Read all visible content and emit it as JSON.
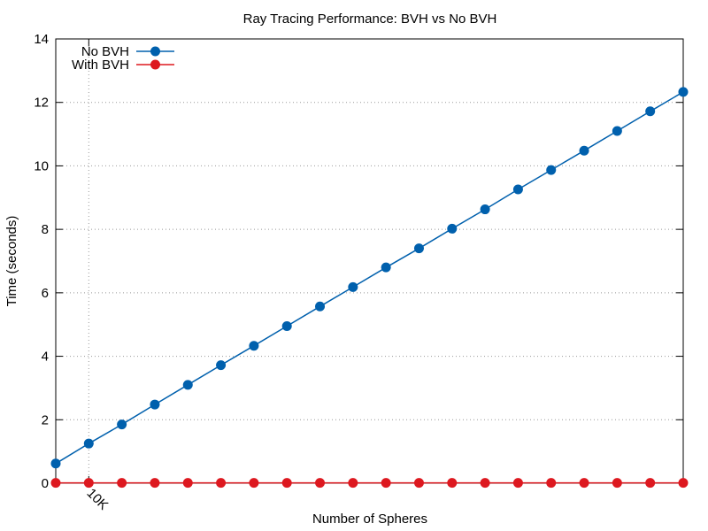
{
  "chart_data": {
    "type": "line",
    "title": "Ray Tracing Performance: BVH vs No BVH",
    "xlabel": "Number of Spheres",
    "ylabel": "Time (seconds)",
    "xlim": [
      5000,
      100000
    ],
    "ylim": [
      0,
      14
    ],
    "yticks": [
      0,
      2,
      4,
      6,
      8,
      10,
      12,
      14
    ],
    "xticks": [
      {
        "value": 10000,
        "label": "10K"
      }
    ],
    "grid": true,
    "legend_position": "top-left",
    "x": [
      5000,
      10000,
      15000,
      20000,
      25000,
      30000,
      35000,
      40000,
      45000,
      50000,
      55000,
      60000,
      65000,
      70000,
      75000,
      80000,
      85000,
      90000,
      95000,
      100000
    ],
    "series": [
      {
        "name": "No BVH",
        "color": "#0060ad",
        "values": [
          0.62,
          1.25,
          1.85,
          2.48,
          3.1,
          3.72,
          4.33,
          4.95,
          5.57,
          6.18,
          6.8,
          7.4,
          8.02,
          8.63,
          9.26,
          9.87,
          10.48,
          11.1,
          11.72,
          12.33
        ]
      },
      {
        "name": "With BVH",
        "color": "#dd181f",
        "values": [
          0.01,
          0.01,
          0.01,
          0.01,
          0.01,
          0.01,
          0.01,
          0.01,
          0.01,
          0.01,
          0.01,
          0.01,
          0.01,
          0.01,
          0.01,
          0.01,
          0.01,
          0.01,
          0.01,
          0.01
        ]
      }
    ]
  }
}
